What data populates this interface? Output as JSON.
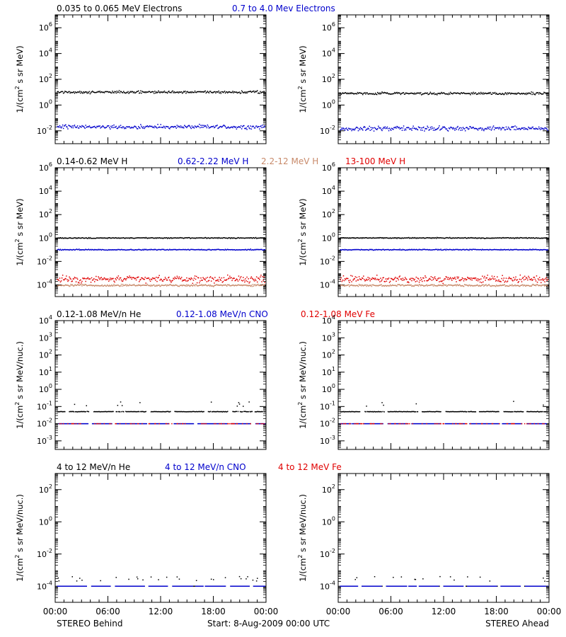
{
  "footer": {
    "left": "STEREO Behind",
    "center": "Start:  8-Aug-2009 00:00 UTC",
    "right": "STEREO Ahead"
  },
  "colors": {
    "black": "#000000",
    "blue": "#0000cc",
    "tan": "#c88a6a",
    "red": "#e00000"
  },
  "chart_data": [
    {
      "row": 0,
      "type": "scatter",
      "scale": "log",
      "ylim_exp": [
        -3,
        7
      ],
      "ytick_exps": [
        -2,
        0,
        2,
        4,
        6
      ],
      "ytick_style": "power",
      "ylabel": "1/(cm² s sr MeV)",
      "xticks": [
        "00:00",
        "06:00",
        "12:00",
        "18:00",
        "00:00"
      ],
      "labels": [
        {
          "text": "0.035 to 0.065 MeV Electrons",
          "color": "black"
        },
        {
          "text": "0.7 to 4.0 Mev Electrons",
          "color": "blue"
        }
      ],
      "behind": [
        {
          "color": "black",
          "level": 10,
          "spread": 0.14
        },
        {
          "color": "blue",
          "level": 0.02,
          "spread": 0.22
        }
      ],
      "ahead": [
        {
          "color": "black",
          "level": 8,
          "spread": 0.14
        },
        {
          "color": "blue",
          "level": 0.015,
          "spread": 0.25
        }
      ]
    },
    {
      "row": 1,
      "type": "scatter",
      "scale": "log",
      "ylim_exp": [
        -5,
        6
      ],
      "ytick_exps": [
        -4,
        -2,
        0,
        2,
        4,
        6
      ],
      "ytick_style": "power",
      "ylabel": "1/(cm² s sr MeV)",
      "xticks": [
        "00:00",
        "06:00",
        "12:00",
        "18:00",
        "00:00"
      ],
      "labels": [
        {
          "text": "0.14-0.62 MeV H",
          "color": "black"
        },
        {
          "text": "0.62-2.22 MeV H",
          "color": "blue"
        },
        {
          "text": "2.2-12 MeV H",
          "color": "tan"
        },
        {
          "text": "13-100 MeV H",
          "color": "red"
        }
      ],
      "behind": [
        {
          "color": "black",
          "level": 1,
          "spread": 0.06
        },
        {
          "color": "blue",
          "level": 0.1,
          "spread": 0.06
        },
        {
          "color": "red",
          "level": 0.0003,
          "spread": 0.4
        },
        {
          "color": "tan",
          "level": 9e-05,
          "spread": 0.12
        }
      ],
      "ahead": [
        {
          "color": "black",
          "level": 1,
          "spread": 0.06
        },
        {
          "color": "blue",
          "level": 0.1,
          "spread": 0.06
        },
        {
          "color": "red",
          "level": 0.0003,
          "spread": 0.4
        },
        {
          "color": "tan",
          "level": 9e-05,
          "spread": 0.12
        }
      ]
    },
    {
      "row": 2,
      "type": "scatter",
      "scale": "log",
      "ylim_exp": [
        -3.5,
        4
      ],
      "ytick_exps": [
        -3,
        -2,
        -1,
        0,
        1,
        2,
        3,
        4
      ],
      "ytick_style": "ten",
      "ylabel": "1/(cm² s sr MeV/nuc.)",
      "xticks": [
        "00:00",
        "06:00",
        "12:00",
        "18:00",
        "00:00"
      ],
      "labels": [
        {
          "text": "0.12-1.08 MeV/n He",
          "color": "black"
        },
        {
          "text": "0.12-1.08 MeV/n CNO",
          "color": "blue"
        },
        {
          "text": "0.12-1.08 MeV Fe",
          "color": "red"
        }
      ],
      "behind": [
        {
          "color": "black",
          "level": 0.05,
          "spread": 0.02,
          "gappy": true
        },
        {
          "color": "blue",
          "level": 0.01,
          "spread": 0.0,
          "gappy": true
        },
        {
          "color": "red",
          "level": 0.01,
          "spread": 0.0,
          "sparse": true
        }
      ],
      "ahead": [
        {
          "color": "black",
          "level": 0.05,
          "spread": 0.02,
          "gappy": true
        },
        {
          "color": "blue",
          "level": 0.01,
          "spread": 0.0,
          "gappy": true
        },
        {
          "color": "red",
          "level": 0.01,
          "spread": 0.0,
          "sparse": true
        }
      ]
    },
    {
      "row": 3,
      "type": "scatter",
      "scale": "log",
      "ylim_exp": [
        -5,
        3
      ],
      "ytick_exps": [
        -4,
        -2,
        0,
        2
      ],
      "ytick_style": "power",
      "ylabel": "1/(cm² s sr MeV/nuc.)",
      "xticks": [
        "00:00",
        "06:00",
        "12:00",
        "18:00",
        "00:00"
      ],
      "labels": [
        {
          "text": "4 to 12 MeV/n He",
          "color": "black"
        },
        {
          "text": "4 to 12 MeV/n CNO",
          "color": "blue"
        },
        {
          "text": "4 to 12 MeV Fe",
          "color": "red"
        }
      ],
      "behind": [
        {
          "color": "black",
          "level": 0.0001,
          "spread": 0.0,
          "gappy": true,
          "sparse": true
        },
        {
          "color": "blue",
          "level": 0.0001,
          "spread": 0.0,
          "gappy": true
        }
      ],
      "ahead": [
        {
          "color": "black",
          "level": 0.0001,
          "spread": 0.0,
          "gappy": true,
          "sparse": true
        },
        {
          "color": "blue",
          "level": 0.0001,
          "spread": 0.0,
          "gappy": true
        }
      ]
    }
  ]
}
